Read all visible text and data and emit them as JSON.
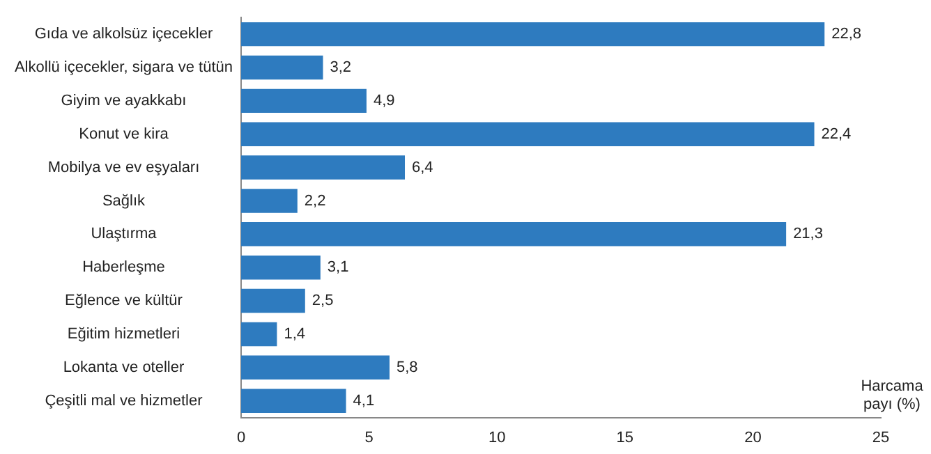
{
  "chart_data": {
    "type": "bar",
    "orientation": "horizontal",
    "xlabel": "Harcama payı (%)",
    "categories": [
      "Gıda ve alkolsüz içecekler",
      "Alkollü içecekler, sigara ve tütün",
      "Giyim ve ayakkabı",
      "Konut ve kira",
      "Mobilya ve ev eşyaları",
      "Sağlık",
      "Ulaştırma",
      "Haberleşme",
      "Eğlence ve kültür",
      "Eğitim hizmetleri",
      "Lokanta ve oteller",
      "Çeşitli mal ve hizmetler"
    ],
    "values": [
      22.8,
      3.2,
      4.9,
      22.4,
      6.4,
      2.2,
      21.3,
      3.1,
      2.5,
      1.4,
      5.8,
      4.1
    ],
    "value_labels": [
      "22,8",
      "3,2",
      "4,9",
      "22,4",
      "6,4",
      "2,2",
      "21,3",
      "3,1",
      "2,5",
      "1,4",
      "5,8",
      "4,1"
    ],
    "color": "#2e7bbf",
    "xlim": [
      0,
      25
    ],
    "xticks": [
      0,
      5,
      10,
      15,
      20,
      25
    ],
    "grid": false,
    "legend": false
  }
}
